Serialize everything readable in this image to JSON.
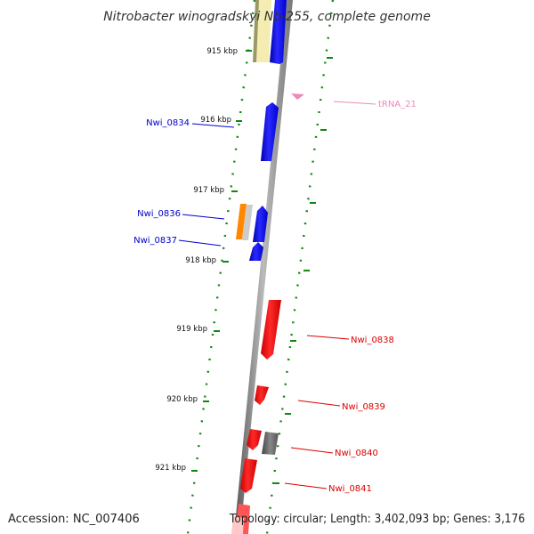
{
  "map": {
    "title": "Nitrobacter winogradskyi Nb-255, complete genome",
    "accession": "Accession: NC_007406",
    "topology": "Topology: circular; Length: 3,402,093 bp; Genes: 3,176"
  },
  "ticks": [
    {
      "label": "915 kbp"
    },
    {
      "label": "916 kbp"
    },
    {
      "label": "917 kbp"
    },
    {
      "label": "918 kbp"
    },
    {
      "label": "919 kbp"
    },
    {
      "label": "920 kbp"
    },
    {
      "label": "921 kbp"
    }
  ],
  "gene_labels": [
    {
      "label": "Nwi_0834",
      "color": "#0000cc"
    },
    {
      "label": "Nwi_0836",
      "color": "#0000cc"
    },
    {
      "label": "Nwi_0837",
      "color": "#0000cc"
    },
    {
      "label": "tRNA_21",
      "color": "#ee88bb"
    },
    {
      "label": "Nwi_0838",
      "color": "#dd0000"
    },
    {
      "label": "Nwi_0839",
      "color": "#dd0000"
    },
    {
      "label": "Nwi_0840",
      "color": "#dd0000"
    },
    {
      "label": "Nwi_0841",
      "color": "#dd0000"
    }
  ],
  "colors": {
    "forward_strand": "#0000ff",
    "reverse_strand": "#ff0000",
    "trna": "#ee88bb",
    "gc_dots": "#118811",
    "backbone": "#888888"
  }
}
